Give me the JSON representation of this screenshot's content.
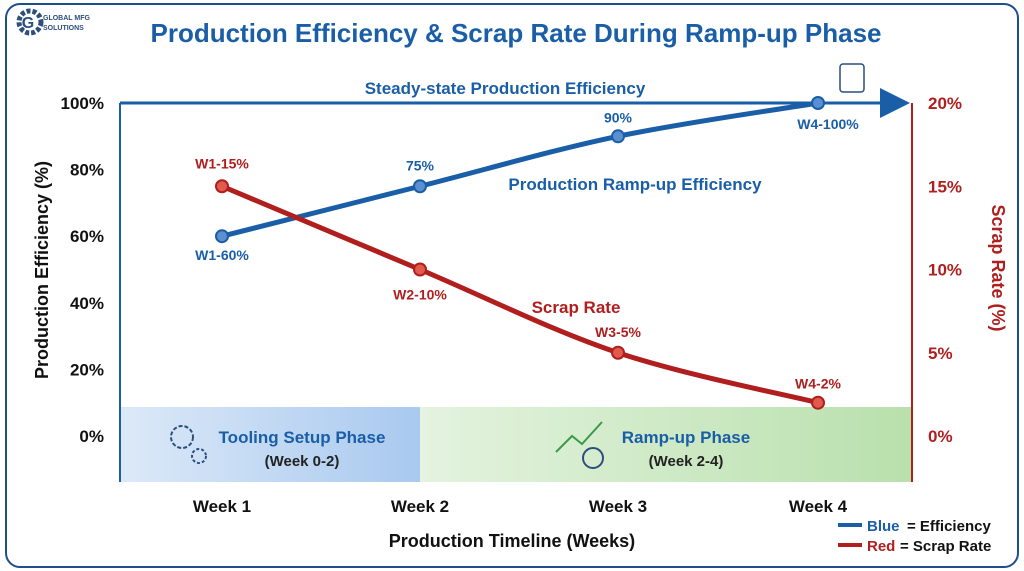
{
  "logo": {
    "line1": "GLOBAL MFG",
    "line2": "SOLUTIONS"
  },
  "chart_data": {
    "type": "line",
    "title": "Production Efficiency & Scrap Rate During Ramp-up Phase",
    "xlabel": "Production Timeline (Weeks)",
    "ylabel": "Production Efficiency (%)",
    "y2label": "Scrap Rate (%)",
    "categories": [
      "Week 1",
      "Week 2",
      "Week 3",
      "Week 4"
    ],
    "ylim": [
      0,
      100
    ],
    "y2lim": [
      0,
      20
    ],
    "yticks": [
      "0%",
      "20%",
      "40%",
      "60%",
      "80%",
      "100%"
    ],
    "y2ticks": [
      "0%",
      "5%",
      "10%",
      "15%",
      "20%"
    ],
    "grid": false,
    "legend_position": "bottom-right",
    "series": [
      {
        "name": "Production Ramp-up Efficiency",
        "axis": "left",
        "color": "#1a5ea8",
        "values": [
          60,
          75,
          90,
          100
        ],
        "labels": [
          "W1-60%",
          "75%",
          "90%",
          "W4-100%"
        ]
      },
      {
        "name": "Scrap Rate",
        "axis": "right",
        "color": "#b01e1e",
        "values": [
          15,
          10,
          5,
          2
        ],
        "labels": [
          "W1-15%",
          "W2-10%",
          "W3-5%",
          "W4-2%"
        ]
      }
    ],
    "reference_line": {
      "label": "Steady-state Production Efficiency",
      "value": 100
    },
    "phases": [
      {
        "label": "Tooling Setup Phase",
        "sub": "(Week 0-2)",
        "color": "#a9c9ef"
      },
      {
        "label": "Ramp-up Phase",
        "sub": "(Week 2-4)",
        "color": "#bfe3b4"
      }
    ],
    "legend": [
      {
        "key": "Blue",
        "text": "= Efficiency",
        "color": "#1a5ea8"
      },
      {
        "key": "Red",
        "text": "= Scrap Rate",
        "color": "#b01e1e"
      }
    ]
  }
}
